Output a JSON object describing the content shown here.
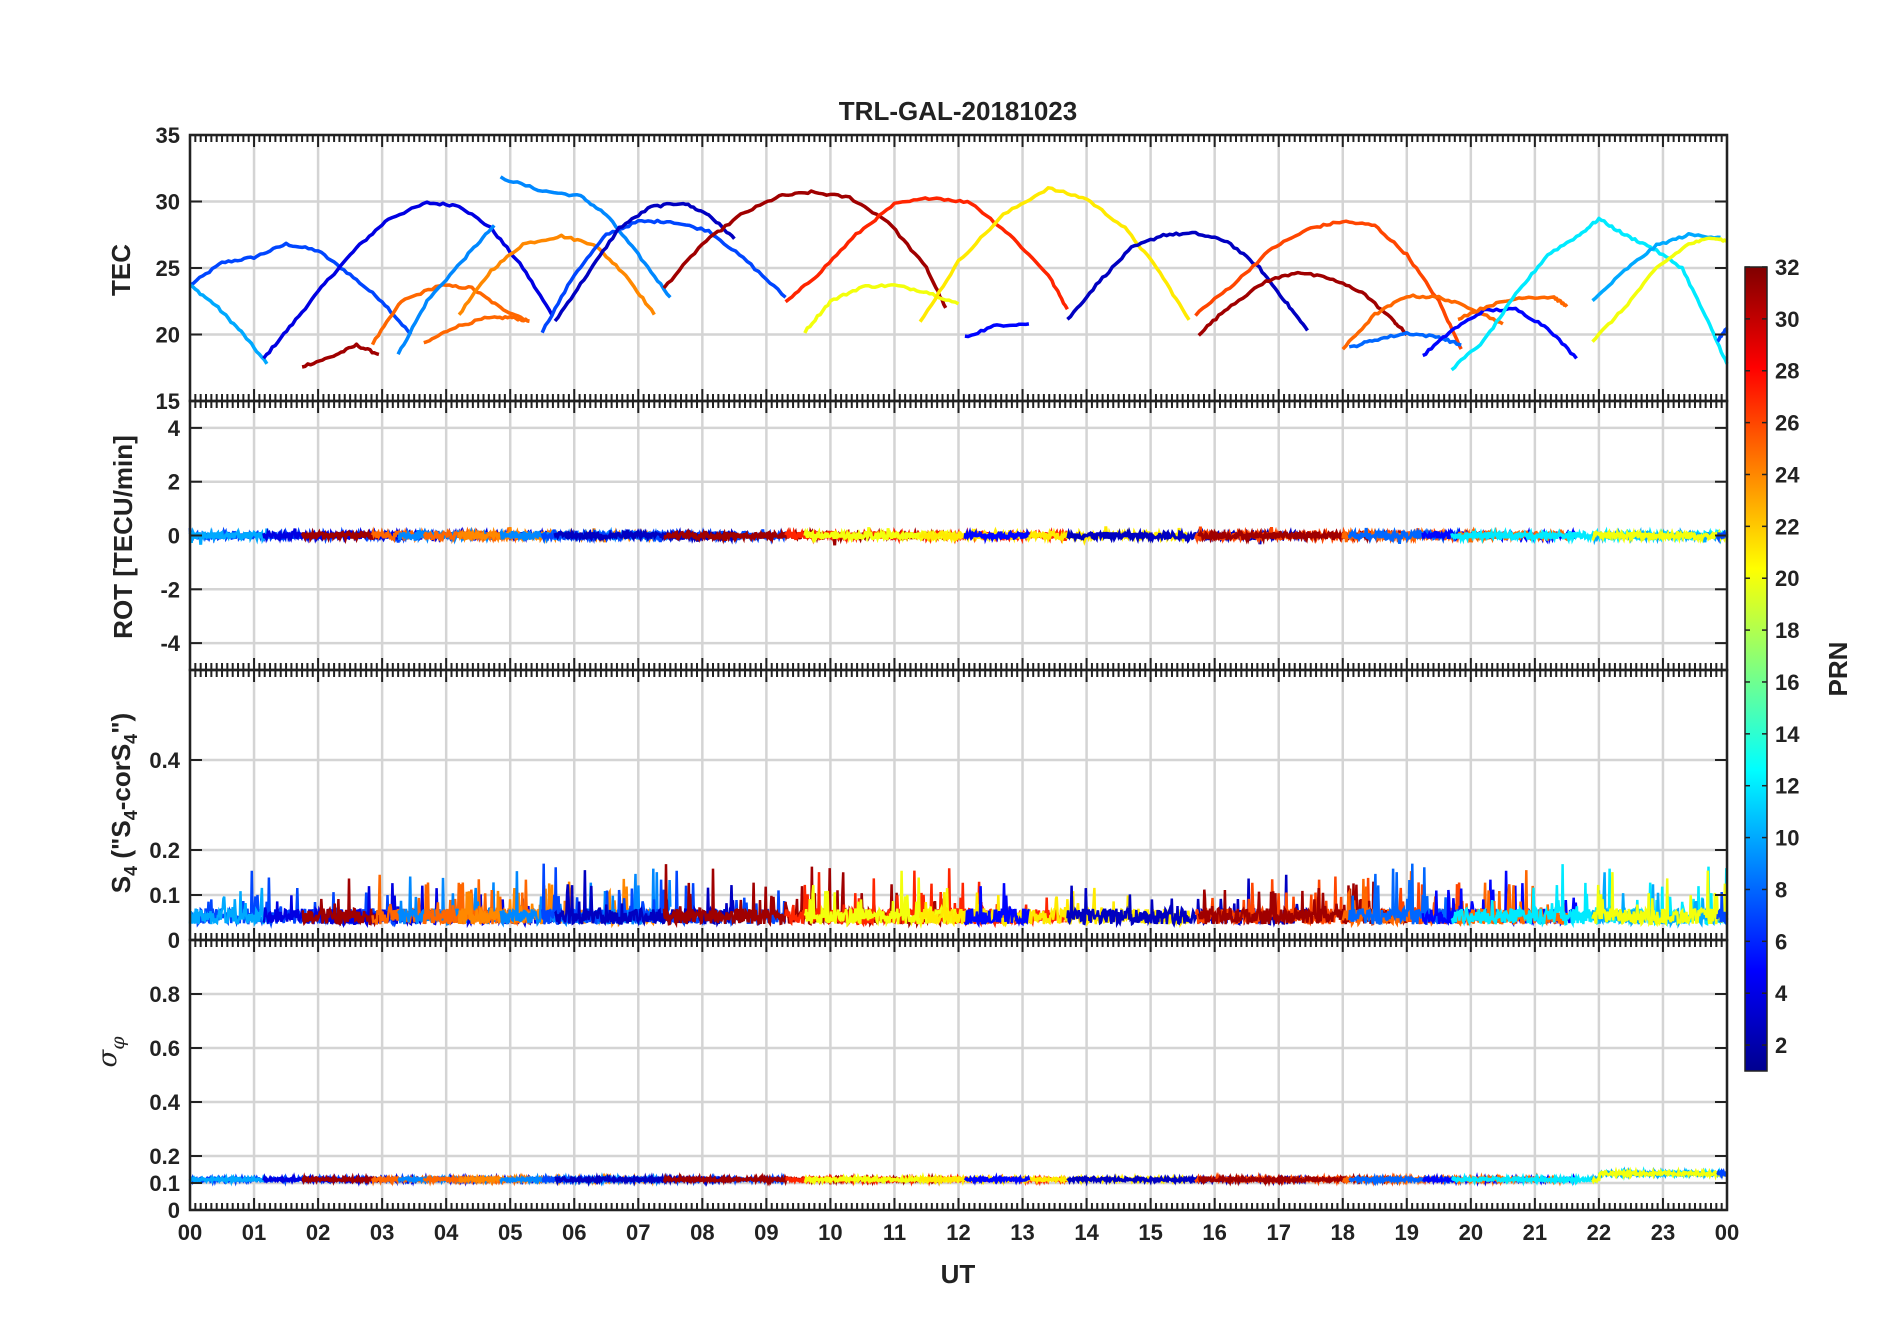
{
  "chart_data": {
    "type": "line",
    "title": "TRL-GAL-20181023",
    "xlabel": "UT",
    "x_tick_labels": [
      "00",
      "01",
      "02",
      "03",
      "04",
      "05",
      "06",
      "07",
      "08",
      "09",
      "10",
      "11",
      "12",
      "13",
      "14",
      "15",
      "16",
      "17",
      "18",
      "19",
      "20",
      "21",
      "22",
      "23",
      "00"
    ],
    "xlim": [
      0,
      24
    ],
    "colorbar": {
      "label": "PRN",
      "range": [
        1,
        32
      ],
      "tick_labels": [
        "2",
        "4",
        "6",
        "8",
        "10",
        "12",
        "14",
        "16",
        "18",
        "20",
        "22",
        "24",
        "26",
        "28",
        "30",
        "32"
      ],
      "tick_values": [
        2,
        4,
        6,
        8,
        10,
        12,
        14,
        16,
        18,
        20,
        22,
        24,
        26,
        28,
        30,
        32
      ],
      "colormap": "jet"
    },
    "panels": [
      {
        "name": "tec",
        "ylabel": "TEC",
        "ylim": [
          15,
          35
        ],
        "y_ticks": [
          15,
          20,
          25,
          30,
          35
        ],
        "y_tick_labels": [
          "15",
          "20",
          "25",
          "30",
          "35"
        ],
        "series": [
          {
            "prn": 7,
            "x": [
              0,
              0.5,
              1,
              1.5,
              2,
              2.5,
              3,
              3.45
            ],
            "y": [
              23.7,
              25.4,
              25.8,
              26.8,
              26.3,
              24.5,
              22.5,
              20.0
            ]
          },
          {
            "prn": 10,
            "x": [
              0,
              0.4,
              0.8,
              1.2
            ],
            "y": [
              23.7,
              22.2,
              20.2,
              17.8
            ]
          },
          {
            "prn": 4,
            "x": [
              1.15,
              1.6,
              2.1,
              2.6,
              3.1,
              3.7,
              4.2,
              4.7,
              5.2,
              5.65
            ],
            "y": [
              18.2,
              20.8,
              23.8,
              26.5,
              28.7,
              29.9,
              29.7,
              28.0,
              25.0,
              21.5
            ]
          },
          {
            "prn": 31,
            "x": [
              1.75,
              2.2,
              2.6,
              2.95
            ],
            "y": [
              17.6,
              18.3,
              19.2,
              18.5
            ]
          },
          {
            "prn": 25,
            "x": [
              2.85,
              3.3,
              3.9,
              4.4,
              4.85,
              5.3
            ],
            "y": [
              19.3,
              22.5,
              23.7,
              23.5,
              22.0,
              21.0
            ]
          },
          {
            "prn": 9,
            "x": [
              3.25,
              3.7,
              4.3,
              4.75
            ],
            "y": [
              18.5,
              22.5,
              25.8,
              28.2
            ]
          },
          {
            "prn": 25,
            "x": [
              3.65,
              4.1,
              4.6,
              5.0,
              5.3
            ],
            "y": [
              19.3,
              20.5,
              21.2,
              21.3,
              21.0
            ]
          },
          {
            "prn": 24,
            "x": [
              4.2,
              4.7,
              5.2,
              5.8,
              6.3,
              6.8,
              7.25
            ],
            "y": [
              21.5,
              24.8,
              26.8,
              27.4,
              26.8,
              24.5,
              21.5
            ]
          },
          {
            "prn": 9,
            "x": [
              4.85,
              5.5,
              6.1,
              6.5,
              7.0,
              7.5
            ],
            "y": [
              31.8,
              30.8,
              30.4,
              29.0,
              26.0,
              22.8
            ]
          },
          {
            "prn": 7,
            "x": [
              5.5,
              6.0,
              6.5,
              7.0,
              7.5,
              8.1,
              8.7,
              9.3
            ],
            "y": [
              20.2,
              24.5,
              27.5,
              28.5,
              28.5,
              27.8,
              25.5,
              22.8
            ]
          },
          {
            "prn": 3,
            "x": [
              5.7,
              6.2,
              6.7,
              7.2,
              7.7,
              8.1,
              8.5
            ],
            "y": [
              21.0,
              24.5,
              28.0,
              29.6,
              29.9,
              29.0,
              27.2
            ]
          },
          {
            "prn": 31,
            "x": [
              7.4,
              8.0,
              8.6,
              9.2,
              9.7,
              10.3,
              10.9,
              11.5,
              11.8
            ],
            "y": [
              23.5,
              26.8,
              29.0,
              30.4,
              30.7,
              30.3,
              28.5,
              25.0,
              22.0
            ]
          },
          {
            "prn": 27,
            "x": [
              9.3,
              9.8,
              10.4,
              11.0,
              11.6,
              12.2,
              12.8,
              13.4,
              13.7
            ],
            "y": [
              22.4,
              24.5,
              27.5,
              29.8,
              30.3,
              29.9,
              27.5,
              24.5,
              21.9
            ]
          },
          {
            "prn": 20,
            "x": [
              9.6,
              10.0,
              10.5,
              11.0,
              11.5,
              12.0
            ],
            "y": [
              20.2,
              22.5,
              23.6,
              23.7,
              23.2,
              22.3
            ]
          },
          {
            "prn": 21,
            "x": [
              11.4,
              12.0,
              12.7,
              13.4,
              14.0,
              14.6,
              15.1,
              15.6
            ],
            "y": [
              20.9,
              25.5,
              29.0,
              31.0,
              30.2,
              28.0,
              25.0,
              21.1
            ]
          },
          {
            "prn": 5,
            "x": [
              12.1,
              12.6,
              13.1
            ],
            "y": [
              19.8,
              20.7,
              20.8
            ]
          },
          {
            "prn": 3,
            "x": [
              13.7,
              14.2,
              14.7,
              15.2,
              15.7,
              16.2,
              16.7,
              17.1,
              17.45
            ],
            "y": [
              21.1,
              24.0,
              26.5,
              27.5,
              27.6,
              27.0,
              25.0,
              22.5,
              20.3
            ]
          },
          {
            "prn": 26,
            "x": [
              15.7,
              16.3,
              16.9,
              17.5,
              18.0,
              18.5,
              19.0,
              19.5,
              19.85
            ],
            "y": [
              21.5,
              23.8,
              26.5,
              28.0,
              28.5,
              28.2,
              26.0,
              22.5,
              18.9
            ]
          },
          {
            "prn": 31,
            "x": [
              15.75,
              16.2,
              16.8,
              17.3,
              17.8,
              18.3,
              18.8,
              19.0
            ],
            "y": [
              20.0,
              22.0,
              24.0,
              24.7,
              24.2,
              23.2,
              21.0,
              20.0
            ]
          },
          {
            "prn": 25,
            "x": [
              18.0,
              18.5,
              19.0,
              19.5,
              20.0,
              20.5
            ],
            "y": [
              18.9,
              21.5,
              22.9,
              22.8,
              22.0,
              20.8
            ]
          },
          {
            "prn": 8,
            "x": [
              18.1,
              18.5,
              19.0,
              19.5,
              19.85
            ],
            "y": [
              19.0,
              19.6,
              20.1,
              19.8,
              19.2
            ]
          },
          {
            "prn": 5,
            "x": [
              19.25,
              19.7,
              20.2,
              20.7,
              21.2,
              21.65
            ],
            "y": [
              18.4,
              20.3,
              21.8,
              21.9,
              20.5,
              18.2
            ]
          },
          {
            "prn": 25,
            "x": [
              19.8,
              20.3,
              20.8,
              21.3,
              21.5
            ],
            "y": [
              21.2,
              22.2,
              22.8,
              22.8,
              22.1
            ]
          },
          {
            "prn": 12,
            "x": [
              19.7,
              20.2,
              20.7,
              21.2,
              21.7,
              22.0,
              22.4,
              22.8,
              23.3,
              23.7,
              24.0
            ],
            "y": [
              17.4,
              19.5,
              23.0,
              26.0,
              27.5,
              28.7,
              27.5,
              26.6,
              25.0,
              21.0,
              17.8
            ]
          },
          {
            "prn": 10,
            "x": [
              21.9,
              22.4,
              22.9,
              23.4,
              23.9
            ],
            "y": [
              22.5,
              24.8,
              26.7,
              27.5,
              27.3
            ]
          },
          {
            "prn": 20,
            "x": [
              21.9,
              22.4,
              22.9,
              23.4,
              23.8,
              24.0
            ],
            "y": [
              19.5,
              22.0,
              25.0,
              26.8,
              27.3,
              27.0
            ]
          },
          {
            "prn": 7,
            "x": [
              23.85,
              24.0
            ],
            "y": [
              19.5,
              20.5
            ]
          }
        ]
      },
      {
        "name": "rot",
        "ylabel": "ROT [TECU/min]",
        "ylim": [
          -5,
          5
        ],
        "y_ticks": [
          -4,
          -2,
          0,
          2,
          4
        ],
        "y_tick_labels": [
          "-4",
          "-2",
          "0",
          "2",
          "4"
        ],
        "series_summary": "all satellites near 0 (about -0.3 to 0.4 TECU/min)"
      },
      {
        "name": "s4",
        "ylabel": "S4 (\"S4-corS4\")",
        "ylim": [
          0,
          0.6
        ],
        "y_ticks": [
          0,
          0.1,
          0.2,
          0.4
        ],
        "y_tick_labels": [
          "0",
          "0.1",
          "0.2",
          "0.4"
        ],
        "series_summary": "background 0.02-0.08 with spikes up to ~0.18 near 05 UT"
      },
      {
        "name": "sigma_phi",
        "ylabel": "σφ",
        "ylim": [
          0,
          1
        ],
        "y_ticks": [
          0,
          0.1,
          0.2,
          0.4,
          0.6,
          0.8
        ],
        "y_tick_labels": [
          "0",
          "0.1",
          "0.2",
          "0.4",
          "0.6",
          "0.8"
        ],
        "series_summary": "flat ~0.11-0.12, rising to ~0.14 after 22 UT"
      }
    ]
  }
}
